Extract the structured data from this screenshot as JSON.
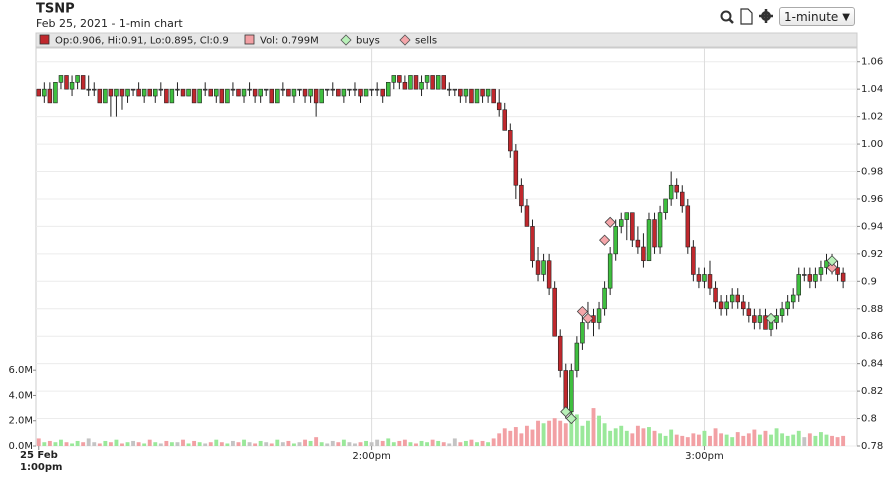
{
  "chart_data": {
    "type": "candlestick",
    "title": "TSNP",
    "subtitle": "Feb 25, 2021 - 1-min chart",
    "interval": "1-minute",
    "legend": {
      "ohlc_text": "Op:0.906, Hi:0.91, Lo:0.895, Cl:0.9",
      "volume_text": "Vol: 0.799M",
      "buys": "buys",
      "sells": "sells"
    },
    "x_start_date": "25 Feb",
    "xlim": [
      -0.5,
      147.5
    ],
    "xticks": [
      {
        "value": 0,
        "label": "1:00pm"
      },
      {
        "value": 60,
        "label": "2:00pm"
      },
      {
        "value": 120,
        "label": "3:00pm"
      }
    ],
    "ylim": [
      0.78,
      1.07
    ],
    "yticks": [
      0.78,
      0.8,
      0.82,
      0.84,
      0.86,
      0.88,
      0.9,
      0.92,
      0.94,
      0.96,
      0.98,
      {
        "value": 1,
        "label": "1.00"
      },
      1.02,
      1.04,
      1.06
    ],
    "y2lim": [
      0,
      31.5
    ],
    "y2ticks": [
      {
        "value": 0,
        "label": "0.0M"
      },
      {
        "value": 2,
        "label": "2.0M"
      },
      {
        "value": 4,
        "label": "4.0M"
      },
      {
        "value": 6,
        "label": "6.0M"
      }
    ],
    "grid": true,
    "colors": {
      "up": "#3fbf3f",
      "down": "#c0282d",
      "flat": "#555555",
      "vol_up": "#9ae89a",
      "vol_down": "#f2a0a4",
      "vol_flat": "#c4c4c4",
      "buys": "#b8f0b8",
      "sells": "#f4a6aa"
    },
    "ohlc": [
      [
        1.04,
        1.04,
        1.035,
        1.035
      ],
      [
        1.035,
        1.045,
        1.03,
        1.04
      ],
      [
        1.04,
        1.045,
        1.03,
        1.03
      ],
      [
        1.03,
        1.045,
        1.03,
        1.045
      ],
      [
        1.045,
        1.05,
        1.04,
        1.05
      ],
      [
        1.05,
        1.05,
        1.04,
        1.04
      ],
      [
        1.04,
        1.05,
        1.035,
        1.045
      ],
      [
        1.045,
        1.05,
        1.04,
        1.05
      ],
      [
        1.05,
        1.05,
        1.04,
        1.04
      ],
      [
        1.04,
        1.05,
        1.035,
        1.04
      ],
      [
        1.04,
        1.045,
        1.035,
        1.04
      ],
      [
        1.04,
        1.04,
        1.03,
        1.03
      ],
      [
        1.03,
        1.04,
        1.03,
        1.04
      ],
      [
        1.04,
        1.04,
        1.02,
        1.035
      ],
      [
        1.035,
        1.04,
        1.02,
        1.04
      ],
      [
        1.04,
        1.04,
        1.025,
        1.035
      ],
      [
        1.035,
        1.04,
        1.03,
        1.04
      ],
      [
        1.04,
        1.04,
        1.035,
        1.04
      ],
      [
        1.04,
        1.045,
        1.035,
        1.035
      ],
      [
        1.035,
        1.04,
        1.03,
        1.04
      ],
      [
        1.04,
        1.04,
        1.035,
        1.035
      ],
      [
        1.035,
        1.04,
        1.03,
        1.04
      ],
      [
        1.04,
        1.045,
        1.035,
        1.04
      ],
      [
        1.04,
        1.04,
        1.03,
        1.03
      ],
      [
        1.03,
        1.04,
        1.03,
        1.04
      ],
      [
        1.04,
        1.045,
        1.035,
        1.04
      ],
      [
        1.04,
        1.04,
        1.035,
        1.035
      ],
      [
        1.035,
        1.04,
        1.035,
        1.04
      ],
      [
        1.04,
        1.04,
        1.03,
        1.03
      ],
      [
        1.03,
        1.04,
        1.03,
        1.04
      ],
      [
        1.04,
        1.045,
        1.035,
        1.04
      ],
      [
        1.04,
        1.04,
        1.035,
        1.035
      ],
      [
        1.035,
        1.04,
        1.03,
        1.04
      ],
      [
        1.04,
        1.04,
        1.03,
        1.03
      ],
      [
        1.03,
        1.04,
        1.03,
        1.04
      ],
      [
        1.04,
        1.045,
        1.035,
        1.04
      ],
      [
        1.04,
        1.04,
        1.035,
        1.035
      ],
      [
        1.035,
        1.04,
        1.03,
        1.04
      ],
      [
        1.04,
        1.045,
        1.035,
        1.04
      ],
      [
        1.04,
        1.04,
        1.03,
        1.035
      ],
      [
        1.035,
        1.04,
        1.03,
        1.04
      ],
      [
        1.04,
        1.04,
        1.035,
        1.04
      ],
      [
        1.04,
        1.04,
        1.03,
        1.03
      ],
      [
        1.03,
        1.04,
        1.03,
        1.04
      ],
      [
        1.04,
        1.045,
        1.035,
        1.04
      ],
      [
        1.04,
        1.04,
        1.035,
        1.035
      ],
      [
        1.035,
        1.04,
        1.03,
        1.04
      ],
      [
        1.04,
        1.04,
        1.035,
        1.04
      ],
      [
        1.04,
        1.04,
        1.03,
        1.035
      ],
      [
        1.035,
        1.04,
        1.03,
        1.04
      ],
      [
        1.04,
        1.04,
        1.02,
        1.03
      ],
      [
        1.03,
        1.04,
        1.03,
        1.04
      ],
      [
        1.04,
        1.04,
        1.035,
        1.04
      ],
      [
        1.04,
        1.045,
        1.035,
        1.04
      ],
      [
        1.04,
        1.04,
        1.035,
        1.035
      ],
      [
        1.035,
        1.04,
        1.03,
        1.04
      ],
      [
        1.04,
        1.04,
        1.035,
        1.04
      ],
      [
        1.04,
        1.045,
        1.035,
        1.04
      ],
      [
        1.04,
        1.04,
        1.03,
        1.035
      ],
      [
        1.035,
        1.04,
        1.035,
        1.04
      ],
      [
        1.04,
        1.04,
        1.035,
        1.04
      ],
      [
        1.04,
        1.045,
        1.035,
        1.04
      ],
      [
        1.04,
        1.04,
        1.03,
        1.035
      ],
      [
        1.035,
        1.045,
        1.035,
        1.045
      ],
      [
        1.045,
        1.05,
        1.04,
        1.05
      ],
      [
        1.05,
        1.05,
        1.04,
        1.045
      ],
      [
        1.045,
        1.05,
        1.04,
        1.04
      ],
      [
        1.04,
        1.05,
        1.04,
        1.05
      ],
      [
        1.05,
        1.05,
        1.04,
        1.04
      ],
      [
        1.04,
        1.05,
        1.035,
        1.045
      ],
      [
        1.045,
        1.05,
        1.04,
        1.05
      ],
      [
        1.05,
        1.05,
        1.04,
        1.04
      ],
      [
        1.04,
        1.05,
        1.04,
        1.05
      ],
      [
        1.05,
        1.05,
        1.04,
        1.04
      ],
      [
        1.04,
        1.045,
        1.035,
        1.04
      ],
      [
        1.04,
        1.04,
        1.035,
        1.04
      ],
      [
        1.04,
        1.04,
        1.03,
        1.035
      ],
      [
        1.035,
        1.04,
        1.03,
        1.04
      ],
      [
        1.04,
        1.04,
        1.03,
        1.03
      ],
      [
        1.03,
        1.04,
        1.03,
        1.04
      ],
      [
        1.04,
        1.04,
        1.03,
        1.035
      ],
      [
        1.035,
        1.04,
        1.03,
        1.04
      ],
      [
        1.04,
        1.04,
        1.03,
        1.03
      ],
      [
        1.03,
        1.04,
        1.02,
        1.025
      ],
      [
        1.025,
        1.03,
        1.01,
        1.01
      ],
      [
        1.01,
        1.015,
        0.99,
        0.995
      ],
      [
        0.995,
        1.0,
        0.96,
        0.97
      ],
      [
        0.97,
        0.975,
        0.95,
        0.955
      ],
      [
        0.955,
        0.96,
        0.94,
        0.94
      ],
      [
        0.94,
        0.945,
        0.91,
        0.915
      ],
      [
        0.915,
        0.925,
        0.9,
        0.905
      ],
      [
        0.905,
        0.92,
        0.9,
        0.915
      ],
      [
        0.915,
        0.92,
        0.89,
        0.895
      ],
      [
        0.895,
        0.9,
        0.86,
        0.86
      ],
      [
        0.86,
        0.865,
        0.83,
        0.835
      ],
      [
        0.835,
        0.84,
        0.8,
        0.805
      ],
      [
        0.805,
        0.84,
        0.8,
        0.835
      ],
      [
        0.835,
        0.86,
        0.83,
        0.855
      ],
      [
        0.855,
        0.875,
        0.85,
        0.87
      ],
      [
        0.87,
        0.885,
        0.865,
        0.875
      ],
      [
        0.875,
        0.88,
        0.86,
        0.87
      ],
      [
        0.87,
        0.885,
        0.865,
        0.88
      ],
      [
        0.88,
        0.9,
        0.875,
        0.895
      ],
      [
        0.895,
        0.925,
        0.89,
        0.92
      ],
      [
        0.92,
        0.945,
        0.915,
        0.94
      ],
      [
        0.94,
        0.95,
        0.935,
        0.945
      ],
      [
        0.945,
        0.95,
        0.93,
        0.95
      ],
      [
        0.95,
        0.95,
        0.925,
        0.93
      ],
      [
        0.93,
        0.94,
        0.92,
        0.925
      ],
      [
        0.925,
        0.935,
        0.91,
        0.915
      ],
      [
        0.915,
        0.95,
        0.915,
        0.945
      ],
      [
        0.945,
        0.95,
        0.92,
        0.925
      ],
      [
        0.925,
        0.955,
        0.92,
        0.95
      ],
      [
        0.95,
        0.96,
        0.945,
        0.96
      ],
      [
        0.96,
        0.98,
        0.955,
        0.97
      ],
      [
        0.97,
        0.975,
        0.96,
        0.965
      ],
      [
        0.965,
        0.97,
        0.95,
        0.955
      ],
      [
        0.955,
        0.96,
        0.92,
        0.925
      ],
      [
        0.925,
        0.93,
        0.9,
        0.905
      ],
      [
        0.905,
        0.91,
        0.895,
        0.9
      ],
      [
        0.9,
        0.91,
        0.895,
        0.905
      ],
      [
        0.905,
        0.915,
        0.89,
        0.895
      ],
      [
        0.895,
        0.9,
        0.88,
        0.885
      ],
      [
        0.885,
        0.89,
        0.875,
        0.88
      ],
      [
        0.88,
        0.89,
        0.875,
        0.885
      ],
      [
        0.885,
        0.895,
        0.88,
        0.89
      ],
      [
        0.89,
        0.895,
        0.88,
        0.885
      ],
      [
        0.885,
        0.89,
        0.875,
        0.88
      ],
      [
        0.88,
        0.885,
        0.87,
        0.875
      ],
      [
        0.875,
        0.88,
        0.865,
        0.87
      ],
      [
        0.87,
        0.88,
        0.865,
        0.875
      ],
      [
        0.875,
        0.88,
        0.865,
        0.865
      ],
      [
        0.865,
        0.875,
        0.86,
        0.87
      ],
      [
        0.87,
        0.88,
        0.865,
        0.875
      ],
      [
        0.875,
        0.885,
        0.87,
        0.88
      ],
      [
        0.88,
        0.89,
        0.875,
        0.885
      ],
      [
        0.885,
        0.895,
        0.88,
        0.89
      ],
      [
        0.89,
        0.91,
        0.885,
        0.905
      ],
      [
        0.905,
        0.91,
        0.9,
        0.905
      ],
      [
        0.905,
        0.91,
        0.895,
        0.9
      ],
      [
        0.9,
        0.91,
        0.895,
        0.905
      ],
      [
        0.905,
        0.915,
        0.9,
        0.91
      ],
      [
        0.91,
        0.92,
        0.905,
        0.915
      ],
      [
        0.915,
        0.92,
        0.905,
        0.91
      ],
      [
        0.91,
        0.915,
        0.9,
        0.905
      ],
      [
        0.906,
        0.91,
        0.895,
        0.9
      ]
    ],
    "volume": [
      0.6,
      0.3,
      0.4,
      0.3,
      0.5,
      0.3,
      0.2,
      0.4,
      0.3,
      0.6,
      0.3,
      0.2,
      0.4,
      0.3,
      0.5,
      0.2,
      0.3,
      0.4,
      0.3,
      0.2,
      0.5,
      0.3,
      0.2,
      0.4,
      0.3,
      0.3,
      0.5,
      0.2,
      0.4,
      0.3,
      0.2,
      0.3,
      0.5,
      0.3,
      0.2,
      0.4,
      0.3,
      0.5,
      0.3,
      0.2,
      0.4,
      0.3,
      0.2,
      0.5,
      0.3,
      0.4,
      0.2,
      0.3,
      0.5,
      0.4,
      0.7,
      0.3,
      0.2,
      0.4,
      0.3,
      0.5,
      0.3,
      0.2,
      0.3,
      0.4,
      0.3,
      0.5,
      0.4,
      0.6,
      0.3,
      0.4,
      0.5,
      0.3,
      0.2,
      0.4,
      0.3,
      0.5,
      0.4,
      0.3,
      0.2,
      0.6,
      0.3,
      0.4,
      0.5,
      0.3,
      0.4,
      0.3,
      0.6,
      1.0,
      1.4,
      1.2,
      1.5,
      1.0,
      1.6,
      1.3,
      2.0,
      1.8,
      2.0,
      2.2,
      2.0,
      1.8,
      3.2,
      2.5,
      1.6,
      2.0,
      3.0,
      2.4,
      1.8,
      1.2,
      1.4,
      1.6,
      1.2,
      1.0,
      1.6,
      1.4,
      1.5,
      1.2,
      1.0,
      0.8,
      1.3,
      0.9,
      0.8,
      0.7,
      1.0,
      0.9,
      1.2,
      0.8,
      1.4,
      1.0,
      0.9,
      0.7,
      1.1,
      0.8,
      1.0,
      1.3,
      0.9,
      1.2,
      0.9,
      1.4,
      1.0,
      0.8,
      0.9,
      1.2,
      0.7,
      1.0,
      0.8,
      1.1,
      0.9,
      0.8,
      0.7,
      0.8
    ],
    "buys": {
      "x": [
        95,
        96,
        132,
        143
      ],
      "y": [
        0.805,
        0.8,
        0.873,
        0.915
      ]
    },
    "sells": {
      "x": [
        98,
        99,
        102,
        103,
        143
      ],
      "y": [
        0.878,
        0.873,
        0.93,
        0.943,
        0.91
      ]
    }
  }
}
